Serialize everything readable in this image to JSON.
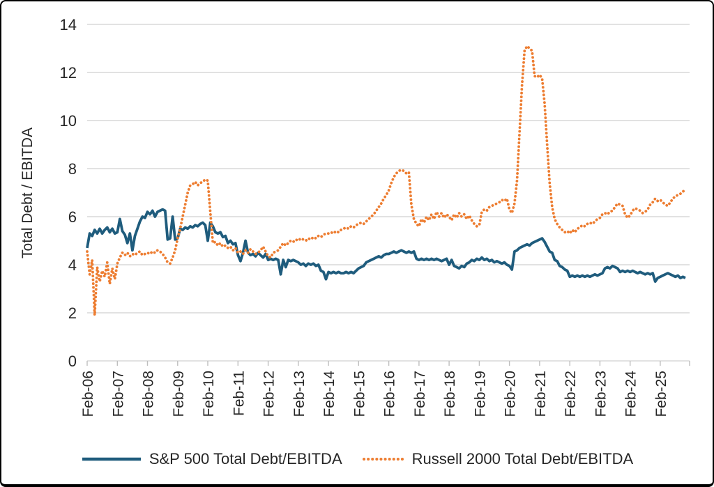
{
  "figure": {
    "colors": {
      "sp500_blue": "#1F5C7D",
      "russell_orange": "#ED7D31",
      "gridline": "#D9D9D9",
      "tick_mark": "#BFBFBF",
      "axis_text": "#262626",
      "border": "#000000"
    }
  },
  "chart_data": {
    "type": "line",
    "title": "",
    "xlabel": "",
    "ylabel": "Total Debt / EBITDA",
    "ylim": [
      0,
      14
    ],
    "yticks": [
      0,
      2,
      4,
      6,
      8,
      10,
      12,
      14
    ],
    "grid": "horizontal",
    "legend_position": "bottom",
    "x_unit": "monthly",
    "x_start": "Feb-06",
    "x_end": "Dec-25",
    "x_tick_labels": [
      "Feb-06",
      "Feb-07",
      "Feb-08",
      "Feb-09",
      "Feb-10",
      "Feb-11",
      "Feb-12",
      "Feb-13",
      "Feb-14",
      "Feb-15",
      "Feb-16",
      "Feb-17",
      "Feb-18",
      "Feb-19",
      "Feb-20",
      "Feb-21",
      "Feb-22",
      "Feb-23",
      "Feb-24",
      "Feb-25"
    ],
    "x_ticks_every_n_points": 12,
    "series": [
      {
        "name": "S&P 500 Total Debt/EBITDA",
        "color": "#1F5C7D",
        "line_style": "solid",
        "values": [
          4.7,
          5.3,
          5.2,
          5.45,
          5.3,
          5.5,
          5.3,
          5.45,
          5.55,
          5.35,
          5.5,
          5.3,
          5.35,
          5.9,
          5.4,
          5.25,
          4.9,
          5.3,
          4.6,
          5.2,
          5.5,
          5.8,
          6.0,
          5.95,
          6.2,
          6.1,
          6.25,
          6.0,
          6.2,
          6.25,
          6.3,
          6.25,
          5.05,
          5.1,
          6.0,
          5.05,
          5.1,
          5.5,
          5.45,
          5.55,
          5.5,
          5.6,
          5.55,
          5.65,
          5.6,
          5.7,
          5.75,
          5.65,
          5.0,
          5.75,
          5.6,
          5.35,
          5.3,
          5.35,
          5.15,
          5.2,
          4.9,
          5.0,
          4.85,
          4.9,
          4.4,
          4.15,
          4.5,
          5.0,
          4.5,
          4.4,
          4.45,
          4.35,
          4.5,
          4.4,
          4.3,
          4.45,
          4.2,
          4.25,
          4.2,
          4.25,
          4.2,
          3.6,
          4.2,
          3.9,
          4.2,
          4.15,
          4.2,
          4.15,
          4.1,
          4.0,
          4.05,
          3.95,
          4.05,
          4.0,
          4.05,
          3.95,
          4.0,
          3.75,
          3.7,
          3.4,
          3.7,
          3.65,
          3.7,
          3.65,
          3.7,
          3.65,
          3.65,
          3.7,
          3.65,
          3.7,
          3.65,
          3.75,
          3.85,
          3.9,
          3.95,
          4.1,
          4.15,
          4.2,
          4.25,
          4.3,
          4.35,
          4.3,
          4.4,
          4.45,
          4.45,
          4.5,
          4.55,
          4.5,
          4.55,
          4.6,
          4.55,
          4.5,
          4.55,
          4.5,
          4.55,
          4.25,
          4.2,
          4.25,
          4.2,
          4.25,
          4.2,
          4.25,
          4.2,
          4.25,
          4.2,
          4.15,
          4.2,
          4.25,
          4.0,
          4.2,
          3.95,
          3.9,
          3.85,
          3.95,
          3.9,
          4.05,
          4.1,
          4.2,
          4.15,
          4.25,
          4.2,
          4.3,
          4.2,
          4.25,
          4.15,
          4.2,
          4.1,
          4.15,
          4.1,
          4.05,
          4.1,
          4.0,
          3.95,
          3.8,
          4.55,
          4.6,
          4.7,
          4.75,
          4.8,
          4.85,
          4.8,
          4.9,
          4.95,
          5.0,
          5.05,
          5.1,
          4.95,
          4.75,
          4.55,
          4.5,
          4.2,
          4.15,
          3.95,
          3.9,
          3.8,
          3.75,
          3.5,
          3.55,
          3.5,
          3.55,
          3.5,
          3.55,
          3.5,
          3.55,
          3.5,
          3.55,
          3.6,
          3.55,
          3.6,
          3.65,
          3.85,
          3.9,
          3.85,
          3.95,
          3.9,
          3.85,
          3.7,
          3.75,
          3.7,
          3.75,
          3.7,
          3.75,
          3.7,
          3.65,
          3.7,
          3.65,
          3.6,
          3.65,
          3.6,
          3.65,
          3.3,
          3.45,
          3.5,
          3.55,
          3.6,
          3.65,
          3.6,
          3.55,
          3.5,
          3.55,
          3.45,
          3.5,
          3.45
        ]
      },
      {
        "name": "Russell 2000 Total Debt/EBITDA",
        "color": "#ED7D31",
        "line_style": "dotted",
        "values": [
          4.55,
          3.6,
          4.2,
          1.9,
          3.9,
          3.3,
          3.75,
          3.5,
          4.1,
          3.2,
          3.85,
          3.4,
          4.05,
          4.3,
          4.5,
          4.4,
          4.5,
          4.35,
          4.45,
          4.4,
          4.5,
          4.55,
          4.4,
          4.45,
          4.5,
          4.45,
          4.55,
          4.5,
          4.6,
          4.55,
          4.45,
          4.3,
          4.1,
          4.05,
          4.3,
          4.6,
          5.1,
          5.5,
          6.0,
          6.5,
          7.0,
          7.3,
          7.35,
          7.45,
          7.3,
          7.4,
          7.45,
          7.55,
          7.5,
          6.2,
          4.9,
          4.95,
          4.8,
          4.9,
          4.75,
          4.8,
          4.7,
          4.75,
          4.6,
          4.7,
          4.5,
          4.55,
          4.45,
          4.6,
          4.5,
          4.65,
          4.55,
          4.45,
          4.5,
          4.6,
          4.75,
          4.55,
          4.35,
          4.3,
          4.5,
          4.55,
          4.6,
          4.75,
          4.9,
          4.8,
          4.9,
          5.0,
          4.95,
          5.05,
          5.0,
          5.1,
          5.05,
          5.0,
          5.1,
          5.05,
          5.15,
          5.1,
          5.2,
          5.15,
          5.25,
          5.3,
          5.3,
          5.35,
          5.3,
          5.4,
          5.35,
          5.45,
          5.5,
          5.55,
          5.5,
          5.6,
          5.55,
          5.65,
          5.7,
          5.75,
          5.7,
          5.8,
          5.9,
          6.0,
          6.1,
          6.25,
          6.4,
          6.55,
          6.75,
          6.9,
          7.1,
          7.4,
          7.65,
          7.8,
          7.9,
          7.95,
          7.9,
          7.8,
          7.85,
          6.5,
          5.9,
          5.7,
          5.6,
          5.9,
          5.75,
          6.0,
          5.85,
          6.1,
          5.9,
          6.2,
          6.0,
          6.15,
          5.95,
          6.1,
          6.0,
          5.85,
          6.1,
          5.95,
          6.15,
          6.0,
          6.1,
          5.9,
          6.05,
          5.85,
          5.7,
          5.6,
          5.65,
          6.2,
          6.3,
          6.25,
          6.4,
          6.45,
          6.5,
          6.55,
          6.6,
          6.7,
          6.65,
          6.75,
          6.3,
          6.15,
          6.55,
          7.5,
          9.5,
          11.5,
          12.9,
          13.1,
          13.0,
          12.9,
          11.85,
          11.8,
          11.9,
          11.75,
          10.7,
          9.0,
          7.4,
          6.4,
          5.9,
          5.7,
          5.55,
          5.45,
          5.35,
          5.4,
          5.3,
          5.45,
          5.35,
          5.5,
          5.55,
          5.65,
          5.6,
          5.7,
          5.75,
          5.7,
          5.8,
          5.9,
          5.95,
          6.1,
          6.15,
          6.1,
          6.2,
          6.25,
          6.4,
          6.55,
          6.5,
          6.45,
          6.1,
          5.95,
          6.05,
          6.25,
          6.35,
          6.3,
          6.25,
          6.15,
          6.2,
          6.3,
          6.5,
          6.6,
          6.75,
          6.65,
          6.7,
          6.6,
          6.5,
          6.45,
          6.6,
          6.75,
          6.85,
          6.9,
          6.95,
          7.05,
          7.1
        ]
      }
    ]
  }
}
